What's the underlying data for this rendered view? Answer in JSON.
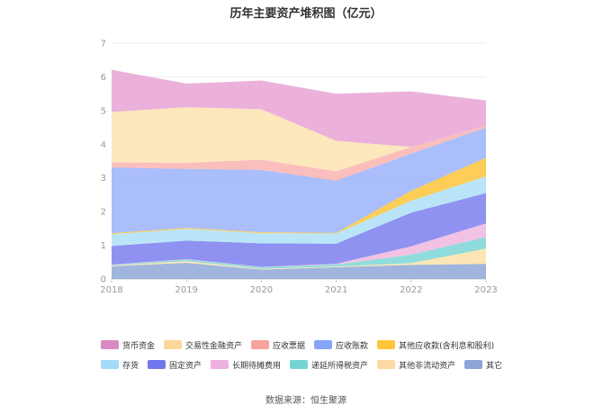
{
  "chart_data": {
    "type": "area",
    "stacked": true,
    "title": "历年主要资产堆积图（亿元）",
    "x": [
      "2018",
      "2019",
      "2020",
      "2021",
      "2022",
      "2023"
    ],
    "ylim": [
      0,
      7
    ],
    "yticks": [
      0,
      1,
      2,
      3,
      4,
      5,
      6,
      7
    ],
    "grid": true,
    "legend_position": "bottom",
    "series": [
      {
        "name": "其它",
        "color": "#8fa8d8",
        "values": [
          0.38,
          0.48,
          0.28,
          0.35,
          0.42,
          0.45
        ]
      },
      {
        "name": "其他非流动资产",
        "color": "#fde2a8",
        "values": [
          0.02,
          0.05,
          0.02,
          0.02,
          0.05,
          0.45
        ]
      },
      {
        "name": "递延所得税资产",
        "color": "#7dd6d6",
        "values": [
          0.02,
          0.05,
          0.05,
          0.06,
          0.25,
          0.35
        ]
      },
      {
        "name": "长期待摊费用",
        "color": "#f0b7e0",
        "values": [
          0.01,
          0.01,
          0.01,
          0.02,
          0.25,
          0.4
        ]
      },
      {
        "name": "固定资产",
        "color": "#7b7fef",
        "values": [
          0.55,
          0.55,
          0.7,
          0.6,
          1.0,
          0.9
        ]
      },
      {
        "name": "存货",
        "color": "#aee0f8",
        "values": [
          0.35,
          0.35,
          0.3,
          0.3,
          0.35,
          0.5
        ]
      },
      {
        "name": "其他应收款(含利息和股利)",
        "color": "#fcc53a",
        "values": [
          0.03,
          0.03,
          0.03,
          0.02,
          0.3,
          0.55
        ]
      },
      {
        "name": "应收账款",
        "color": "#9ab3f9",
        "values": [
          1.95,
          1.75,
          1.85,
          1.55,
          1.1,
          0.9
        ]
      },
      {
        "name": "应收票据",
        "color": "#f9b3b0",
        "values": [
          0.15,
          0.18,
          0.3,
          0.28,
          0.2,
          0.05
        ]
      },
      {
        "name": "交易性金融资产",
        "color": "#fde3b1",
        "values": [
          1.5,
          1.65,
          1.5,
          0.9,
          0.0,
          0.0
        ]
      },
      {
        "name": "货币资金",
        "color": "#e8a3d4",
        "values": [
          1.25,
          0.7,
          0.85,
          1.4,
          1.65,
          0.75
        ]
      }
    ]
  },
  "legend_order": [
    [
      "货币资金",
      "交易性金融资产",
      "应收票据",
      "应收账款",
      "其他应收款(含利息和股利)"
    ],
    [
      "存货",
      "固定资产",
      "长期待摊费用",
      "递延所得税资产",
      "其他非流动资产",
      "其它"
    ]
  ],
  "legend_colors": {
    "货币资金": "#d98ac4",
    "交易性金融资产": "#fdd699",
    "应收票据": "#f7a29e",
    "应收账款": "#85a4f7",
    "其他应收款(含利息和股利)": "#fcc53a",
    "存货": "#a3daf7",
    "固定资产": "#7276ee",
    "长期待摊费用": "#eeb0de",
    "递延所得税资产": "#74d4d4",
    "其他非流动资产": "#fcd9a0",
    "其它": "#8aa5d6"
  },
  "source": "数据来源：恒生聚源"
}
